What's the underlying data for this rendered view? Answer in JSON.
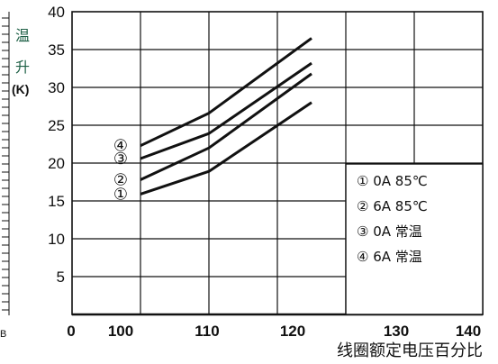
{
  "chart_data": {
    "type": "line",
    "y_label_chars": [
      "温",
      "升"
    ],
    "y_unit": "(K)",
    "xlabel": "线圈额定电压百分比",
    "xlim": [
      0,
      140
    ],
    "ylim": [
      0,
      40
    ],
    "x_ticks": [
      "0",
      "100",
      "110",
      "120",
      "130",
      "140"
    ],
    "y_ticks": [
      "5",
      "10",
      "15",
      "20",
      "25",
      "30",
      "35",
      "40"
    ],
    "grid": true,
    "series": [
      {
        "name": "① 0A 85℃",
        "marker": "①",
        "x": [
          100,
          110,
          125
        ],
        "y": [
          15.9,
          18.9,
          28.0
        ]
      },
      {
        "name": "② 6A 85℃",
        "marker": "②",
        "x": [
          100,
          110,
          125
        ],
        "y": [
          17.8,
          22.0,
          31.8
        ]
      },
      {
        "name": "③ 0A 常温",
        "marker": "③",
        "x": [
          100,
          110,
          125
        ],
        "y": [
          20.6,
          23.9,
          33.2
        ]
      },
      {
        "name": "④ 6A 常温",
        "marker": "④",
        "x": [
          100,
          110,
          125
        ],
        "y": [
          22.3,
          26.6,
          36.5
        ]
      }
    ],
    "legend": {
      "placement": "bottom-right",
      "entries": [
        "① 0A 85℃",
        "② 6A 85℃",
        "③ 0A 常温",
        "④ 6A 常温"
      ]
    },
    "left_edge_note": "B"
  }
}
